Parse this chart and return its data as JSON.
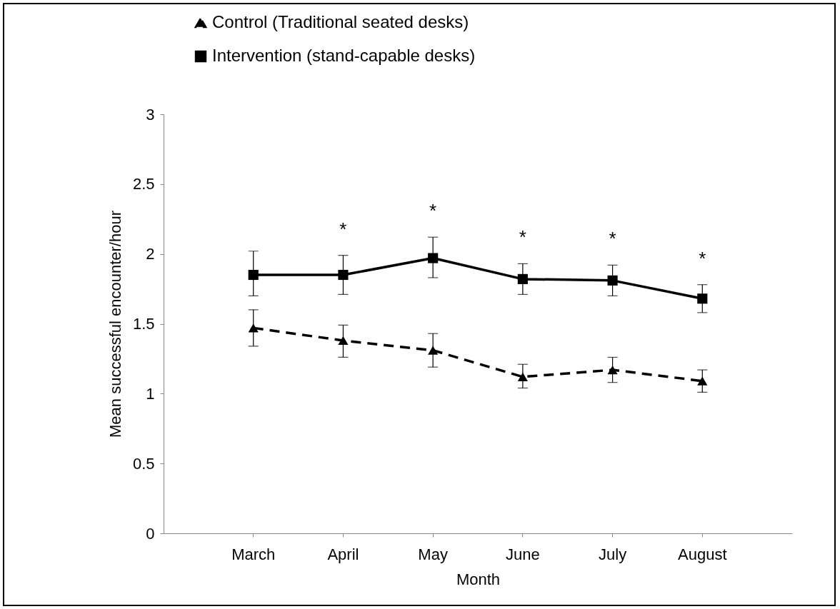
{
  "chart_data": {
    "type": "line",
    "xlabel": "Month",
    "ylabel": "Mean successful encounter/hour",
    "categories": [
      "March",
      "April",
      "May",
      "June",
      "July",
      "August"
    ],
    "ylim": [
      0,
      3
    ],
    "yticks": [
      0,
      0.5,
      1,
      1.5,
      2,
      2.5,
      3
    ],
    "grid": false,
    "legend": "top",
    "series": [
      {
        "name": "Control (Traditional seated desks)",
        "color": "#000000",
        "marker": "triangle",
        "line_style": "dashed",
        "values": [
          1.47,
          1.38,
          1.31,
          1.12,
          1.17,
          1.09
        ],
        "errors": [
          [
            1.34,
            1.6
          ],
          [
            1.26,
            1.49
          ],
          [
            1.19,
            1.43
          ],
          [
            1.04,
            1.21
          ],
          [
            1.08,
            1.26
          ],
          [
            1.01,
            1.17
          ]
        ]
      },
      {
        "name": "Intervention (stand-capable desks)",
        "color": "#000000",
        "marker": "square",
        "line_style": "solid",
        "values": [
          1.85,
          1.85,
          1.97,
          1.82,
          1.81,
          1.68
        ],
        "errors": [
          [
            1.7,
            2.02
          ],
          [
            1.71,
            1.99
          ],
          [
            1.83,
            2.12
          ],
          [
            1.71,
            1.93
          ],
          [
            1.7,
            1.92
          ],
          [
            1.58,
            1.78
          ]
        ]
      }
    ],
    "annotations": [
      {
        "text": "*",
        "x": "April",
        "y": 1.99
      },
      {
        "text": "*",
        "x": "May",
        "y": 2.12
      },
      {
        "text": "*",
        "x": "June",
        "y": 1.93
      },
      {
        "text": "*",
        "x": "July",
        "y": 1.92
      },
      {
        "text": "*",
        "x": "August",
        "y": 1.78
      }
    ]
  }
}
